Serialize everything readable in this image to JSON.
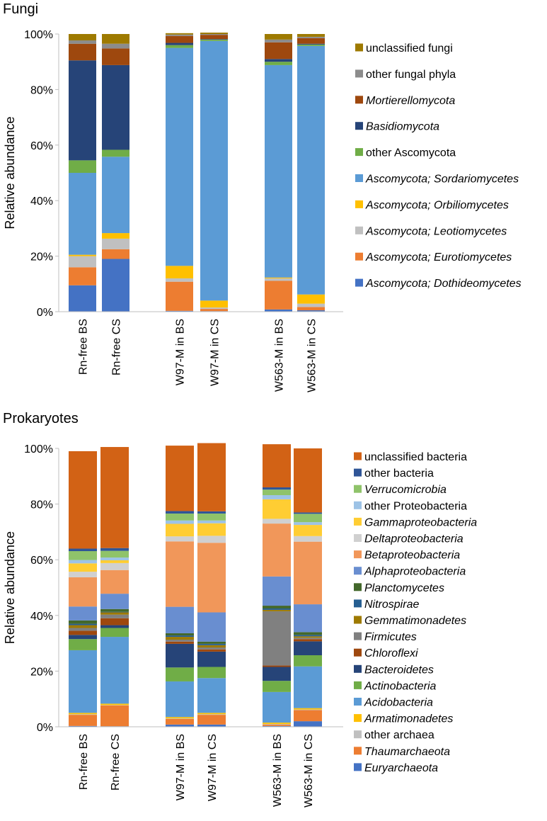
{
  "chart_data": [
    {
      "type": "bar",
      "stacked": true,
      "title": "Fungi",
      "ylabel": "Relative abundance",
      "ylim": [
        0,
        100
      ],
      "yticks": [
        "0%",
        "20%",
        "40%",
        "60%",
        "80%",
        "100%"
      ],
      "categories": [
        "Rn-free BS",
        "Rn-free CS",
        "W97-M in BS",
        "W97-M in CS",
        "W563-M in BS",
        "W563-M in CS"
      ],
      "legend_position": "right",
      "series": [
        {
          "name": "Ascomycota; Dothideomycetes",
          "italic": true,
          "color": "#4472C4",
          "values": [
            9.5,
            19.0,
            0.3,
            0.2,
            0.8,
            0.5
          ]
        },
        {
          "name": "Ascomycota; Eurotiomycetes",
          "italic": true,
          "color": "#ED7D31",
          "values": [
            6.5,
            3.5,
            10.5,
            0.8,
            10.3,
            1.2
          ]
        },
        {
          "name": "Ascomycota; Leotiomycetes",
          "italic": true,
          "color": "#C0C0C0",
          "values": [
            4.0,
            3.8,
            1.2,
            0.5,
            0.9,
            1.2
          ]
        },
        {
          "name": "Ascomycota; Orbiliomycetes",
          "italic": true,
          "color": "#FFC000",
          "values": [
            0.5,
            2.0,
            4.5,
            2.5,
            0.3,
            3.3
          ]
        },
        {
          "name": "Ascomycota; Sordariomycetes",
          "italic": true,
          "color": "#5B9BD5",
          "values": [
            29.5,
            27.5,
            78.5,
            93.5,
            76.5,
            89.5
          ]
        },
        {
          "name": "other Ascomycota",
          "italic": false,
          "color": "#70AD47",
          "values": [
            4.5,
            2.5,
            1.0,
            0.5,
            1.2,
            0.5
          ]
        },
        {
          "name": "Basidiomycota",
          "italic": true,
          "color": "#264478",
          "values": [
            36.0,
            30.5,
            0.8,
            0.2,
            1.0,
            0.3
          ]
        },
        {
          "name": "Mortierellomycota",
          "italic": true,
          "color": "#9E480E",
          "values": [
            6.0,
            6.0,
            2.5,
            1.5,
            6.0,
            2.0
          ]
        },
        {
          "name": "other fungal phyla",
          "italic": false,
          "color": "#8C8C8C",
          "values": [
            1.2,
            1.7,
            0.5,
            0.3,
            1.0,
            0.5
          ]
        },
        {
          "name": "unclassified fungi",
          "italic": false,
          "color": "#9E7A00",
          "values": [
            2.3,
            3.5,
            0.5,
            0.5,
            2.0,
            1.0
          ]
        }
      ]
    },
    {
      "type": "bar",
      "stacked": true,
      "title": "Prokaryotes",
      "ylabel": "Relative abundance",
      "ylim": [
        0,
        100
      ],
      "yticks": [
        "0%",
        "20%",
        "40%",
        "60%",
        "80%",
        "100%"
      ],
      "categories": [
        "Rn-free BS",
        "Rn-free CS",
        "W97-M in BS",
        "W97-M in CS",
        "W563-M in BS",
        "W563-M in CS"
      ],
      "legend_position": "right",
      "series": [
        {
          "name": "Euryarchaeota",
          "italic": true,
          "color": "#4472C4",
          "values": [
            0.3,
            0.2,
            0.8,
            0.8,
            0.3,
            2.0
          ]
        },
        {
          "name": "Thaumarchaeota",
          "italic": true,
          "color": "#ED7D31",
          "values": [
            4.0,
            7.5,
            2.0,
            3.5,
            0.5,
            4.0
          ]
        },
        {
          "name": "other archaea",
          "italic": false,
          "color": "#C0C0C0",
          "values": [
            0.2,
            0.1,
            0.2,
            0.2,
            0.2,
            0.2
          ]
        },
        {
          "name": "Armatimonadetes",
          "italic": true,
          "color": "#FFC000",
          "values": [
            0.5,
            0.5,
            0.5,
            0.5,
            0.5,
            0.5
          ]
        },
        {
          "name": "Acidobacteria",
          "italic": true,
          "color": "#5B9BD5",
          "values": [
            22.5,
            24.0,
            12.8,
            12.5,
            11.0,
            15.0
          ]
        },
        {
          "name": "Actinobacteria",
          "italic": true,
          "color": "#70AD47",
          "values": [
            4.0,
            3.2,
            5.0,
            4.0,
            4.0,
            4.0
          ]
        },
        {
          "name": "Bacteroidetes",
          "italic": true,
          "color": "#264478",
          "values": [
            1.5,
            1.0,
            8.5,
            5.5,
            5.0,
            5.0
          ]
        },
        {
          "name": "Chloroflexi",
          "italic": true,
          "color": "#9E480E",
          "values": [
            1.5,
            2.5,
            0.8,
            0.8,
            0.5,
            0.8
          ]
        },
        {
          "name": "Firmicutes",
          "italic": true,
          "color": "#808080",
          "values": [
            1.0,
            1.3,
            0.7,
            0.7,
            19.5,
            0.5
          ]
        },
        {
          "name": "Gemmatimonadetes",
          "italic": true,
          "color": "#9E7A00",
          "values": [
            1.0,
            0.8,
            1.0,
            0.8,
            0.5,
            0.5
          ]
        },
        {
          "name": "Nitrospirae",
          "italic": true,
          "color": "#255E91",
          "values": [
            0.5,
            0.2,
            0.5,
            0.5,
            0.5,
            0.5
          ]
        },
        {
          "name": "Planctomycetes",
          "italic": true,
          "color": "#43682B",
          "values": [
            1.2,
            1.0,
            0.8,
            0.8,
            1.0,
            1.0
          ]
        },
        {
          "name": "Alphaproteobacteria",
          "italic": true,
          "color": "#698ED0",
          "values": [
            5.0,
            5.5,
            9.5,
            10.5,
            10.5,
            10.0
          ]
        },
        {
          "name": "Betaproteobacteria",
          "italic": true,
          "color": "#F1975A",
          "values": [
            10.5,
            8.5,
            23.5,
            25.0,
            19.0,
            22.5
          ]
        },
        {
          "name": "Deltaproteobacteria",
          "italic": true,
          "color": "#D0D0D0",
          "values": [
            2.0,
            2.5,
            1.8,
            2.5,
            1.7,
            2.0
          ]
        },
        {
          "name": "Gammaproteobacteria",
          "italic": true,
          "color": "#FFCD33",
          "values": [
            3.0,
            1.0,
            4.5,
            4.5,
            7.0,
            4.0
          ]
        },
        {
          "name": "other Proteobacteria",
          "italic": false,
          "color": "#9DC3E6",
          "values": [
            1.2,
            1.0,
            1.2,
            1.0,
            1.5,
            1.0
          ]
        },
        {
          "name": "Verrucomicrobia",
          "italic": true,
          "color": "#8FC36A",
          "values": [
            3.2,
            2.4,
            2.5,
            2.5,
            2.0,
            3.0
          ]
        },
        {
          "name": "other bacteria",
          "italic": false,
          "color": "#2F5597",
          "values": [
            0.9,
            1.0,
            0.9,
            0.8,
            0.8,
            0.5
          ]
        },
        {
          "name": "unclassified bacteria",
          "italic": false,
          "color": "#D26215",
          "values": [
            35.0,
            36.3,
            23.5,
            24.5,
            15.5,
            23.0
          ]
        }
      ]
    }
  ]
}
